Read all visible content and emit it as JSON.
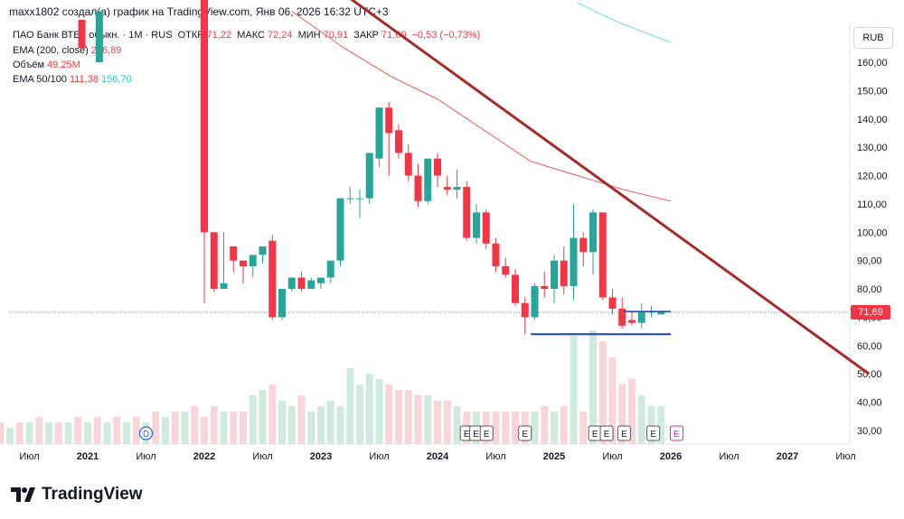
{
  "header": "maxx1802 создал(а) график на TradingView.com, Янв 06, 2026 16:32 UTC+3",
  "legend": {
    "symbol": "ПАО Банк ВТБ · обыкн. · 1М · RUS",
    "open_label": "ОТКР",
    "open": "71,22",
    "high_label": "МАКС",
    "high": "72,24",
    "low_label": "МИН",
    "low": "70,91",
    "close_label": "ЗАКР",
    "close": "71,69",
    "change": "−0,53 (−0,73%)",
    "ema200_label": "EMA (200, close)",
    "ema200": "236,89",
    "volume_label": "Объём",
    "volume": "49,25M",
    "ema50100_label": "EMA 50/100",
    "ema50": "111,38",
    "ema100": "156,70"
  },
  "currency": "RUB",
  "last_price": "71,69",
  "logo_text": "TradingView",
  "colors": {
    "up": "#26a69a",
    "down": "#f23645",
    "up_vol": "#cfeadf",
    "down_vol": "#f8d5d8",
    "trend": "#a52a2a",
    "ema_red": "#e57373",
    "ema_cyan": "#80deea",
    "support": "#1e3fae"
  },
  "chart_data": {
    "type": "candlestick",
    "y_axis_ticks": [
      "160,00",
      "150,00",
      "140,00",
      "130,00",
      "120,00",
      "110,00",
      "100,00",
      "90,00",
      "80,00",
      "70,00",
      "60,00",
      "50,00",
      "40,00",
      "30,00"
    ],
    "y_tick_values": [
      160,
      150,
      140,
      130,
      120,
      110,
      100,
      90,
      80,
      70,
      60,
      50,
      40,
      30
    ],
    "x_axis_ticks": [
      "Июл",
      "2021",
      "Июл",
      "2022",
      "Июл",
      "2023",
      "Июл",
      "2024",
      "Июл",
      "2025",
      "Июл",
      "2026",
      "Июл",
      "2027",
      "Июл"
    ],
    "ylim": [
      25,
      170
    ],
    "candles_2022_2026": [
      [
        240,
        100,
        80,
        75
      ],
      [
        100,
        80,
        82,
        79
      ],
      [
        80,
        82,
        100,
        133
      ],
      [
        95,
        90,
        87,
        86
      ],
      [
        90,
        88,
        84,
        82
      ],
      [
        88,
        92,
        85,
        84
      ],
      [
        92,
        95,
        90,
        89
      ],
      [
        97,
        70,
        99,
        69
      ],
      [
        70,
        80,
        71,
        69
      ],
      [
        80,
        84,
        82,
        79
      ],
      [
        84,
        80,
        86,
        79
      ],
      [
        80,
        83,
        84,
        80
      ],
      [
        82,
        84,
        81,
        80
      ],
      [
        84,
        90,
        81,
        82
      ],
      [
        90,
        112,
        88,
        88
      ],
      [
        112,
        112,
        116,
        110
      ],
      [
        112,
        112,
        115,
        105
      ],
      [
        112,
        128,
        110,
        110
      ],
      [
        126,
        144,
        124,
        123
      ],
      [
        144,
        135,
        146,
        120
      ],
      [
        136,
        128,
        138,
        126
      ],
      [
        128,
        120,
        131,
        118
      ],
      [
        120,
        111,
        124,
        109
      ],
      [
        111,
        126,
        110,
        110
      ],
      [
        126,
        120,
        128,
        116
      ],
      [
        116,
        115,
        120,
        113
      ],
      [
        115,
        116,
        122,
        112
      ],
      [
        116,
        98,
        118,
        97
      ],
      [
        98,
        107,
        110,
        96
      ],
      [
        107,
        96,
        108,
        94
      ],
      [
        96,
        88,
        98,
        86
      ],
      [
        88,
        85,
        91,
        84
      ],
      [
        85,
        75,
        87,
        74
      ],
      [
        75,
        70,
        77,
        64
      ],
      [
        70,
        81,
        82,
        69
      ],
      [
        81,
        80,
        86,
        77
      ],
      [
        80,
        90,
        92,
        75
      ],
      [
        90,
        81,
        95,
        78
      ],
      [
        81,
        98,
        110,
        76
      ],
      [
        98,
        93,
        100,
        88
      ],
      [
        93,
        107,
        108,
        85
      ],
      [
        107,
        77,
        107,
        76
      ],
      [
        77,
        73,
        80,
        71
      ],
      [
        73,
        67,
        77,
        66
      ],
      [
        69,
        68,
        72,
        67
      ],
      [
        68,
        72,
        75,
        66
      ],
      [
        72,
        72,
        74,
        70
      ],
      [
        71,
        72,
        72,
        71
      ]
    ],
    "volumes_rel": [
      0.25,
      0.35,
      0.3,
      0.3,
      0.3,
      0.45,
      0.5,
      0.55,
      0.4,
      0.35,
      0.45,
      0.3,
      0.35,
      0.4,
      0.35,
      0.7,
      0.55,
      0.65,
      0.6,
      0.55,
      0.5,
      0.5,
      0.45,
      0.45,
      0.4,
      0.4,
      0.35,
      0.3,
      0.3,
      0.3,
      0.3,
      0.3,
      0.3,
      0.3,
      0.3,
      0.35,
      0.3,
      0.35,
      1.0,
      0.3,
      1.05,
      0.95,
      0.8,
      0.55,
      0.6,
      0.45,
      0.35,
      0.35
    ],
    "early_volumes_rel": [
      0.1,
      0.2,
      0.15,
      0.2,
      0.15,
      0.2,
      0.2,
      0.25,
      0.2,
      0.2,
      0.2,
      0.25,
      0.2,
      0.25,
      0.2,
      0.25,
      0.2,
      0.25,
      0.2,
      0.3,
      0.25,
      0.3,
      0.3,
      0.35
    ],
    "trendline": {
      "from": [
        2023.0,
        190
      ],
      "to": [
        2027.7,
        50
      ]
    },
    "support_line": {
      "value": 64,
      "from": 2024.8,
      "to": 2026.0
    },
    "short_line": {
      "value": 72,
      "from": 2025.6,
      "to": 2026.0
    },
    "ema_red": [
      [
        2022.75,
        178
      ],
      [
        2023.2,
        165
      ],
      [
        2023.6,
        155
      ],
      [
        2024.0,
        147
      ],
      [
        2024.4,
        136
      ],
      [
        2024.8,
        125
      ],
      [
        2025.2,
        120
      ],
      [
        2025.6,
        115
      ],
      [
        2026.0,
        111
      ]
    ],
    "ema_cyan": [
      [
        2025.2,
        181
      ],
      [
        2025.5,
        175
      ],
      [
        2026.0,
        167
      ]
    ],
    "events": [
      "D",
      "E",
      "E",
      "E",
      "E",
      "E",
      "E",
      "E",
      "E",
      "E"
    ]
  }
}
